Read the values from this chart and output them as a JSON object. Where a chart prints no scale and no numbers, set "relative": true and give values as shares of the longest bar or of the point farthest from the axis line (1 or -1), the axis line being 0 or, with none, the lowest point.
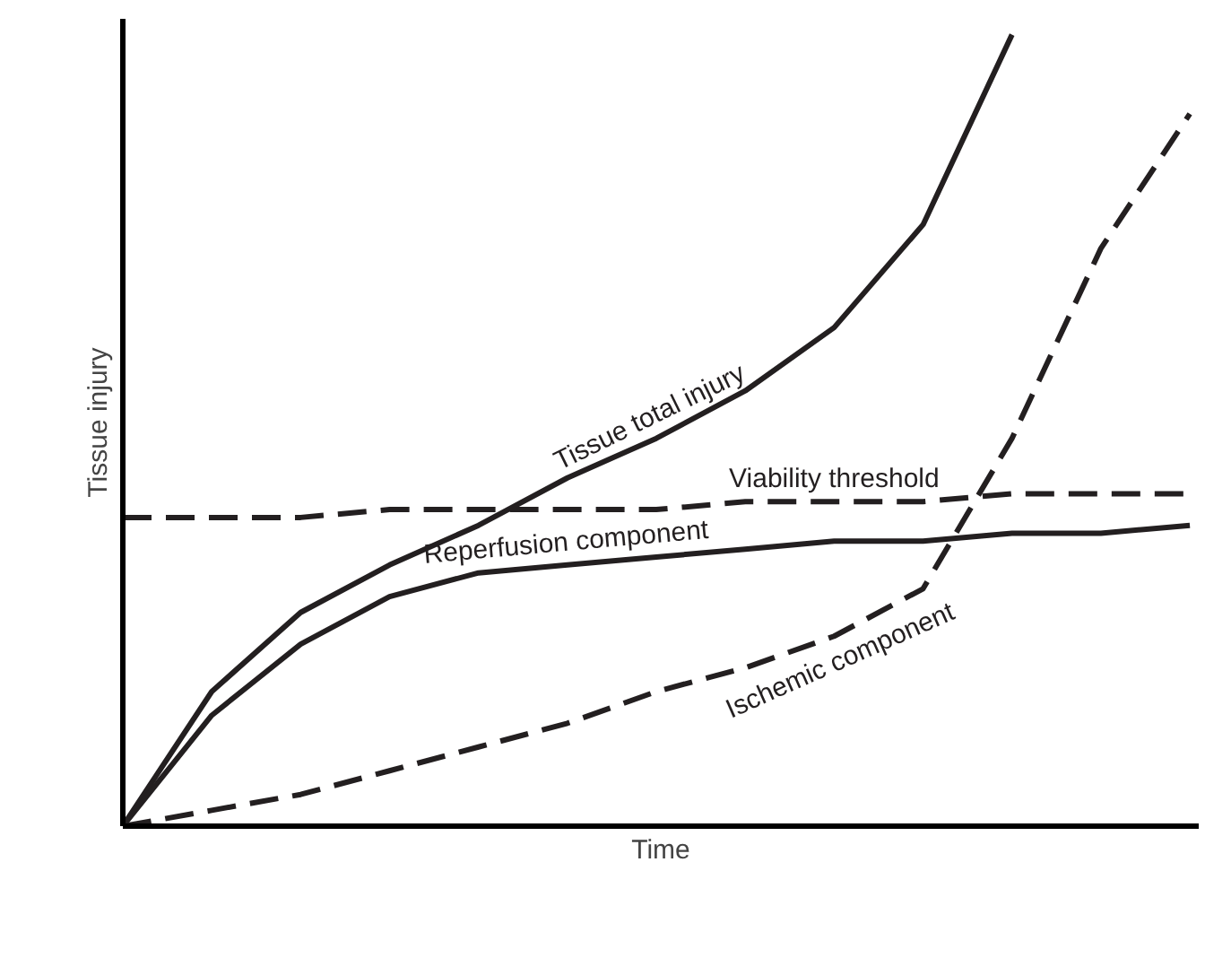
{
  "chart_data": {
    "type": "line",
    "relative": true,
    "xlabel": "Time",
    "ylabel": "Tissue injury",
    "categories": [
      null,
      null,
      null,
      null,
      null,
      null,
      null,
      null,
      null,
      null,
      null,
      null,
      null
    ],
    "series": [
      {
        "name": "Tissue total injury",
        "color": "#231f20",
        "line_style": "solid",
        "values": [
          0,
          0.17,
          0.27,
          0.33,
          0.38,
          0.44,
          0.49,
          0.55,
          0.63,
          0.76,
          1.0,
          null,
          null
        ]
      },
      {
        "name": "Viability threshold",
        "color": "#231f20",
        "line_style": "dashed",
        "values": [
          0.39,
          0.39,
          0.39,
          0.4,
          0.4,
          0.4,
          0.4,
          0.41,
          0.41,
          0.41,
          0.42,
          0.42,
          0.42
        ]
      },
      {
        "name": "Reperfusion component",
        "color": "#231f20",
        "line_style": "solid",
        "values": [
          0,
          0.14,
          0.23,
          0.29,
          0.32,
          0.33,
          0.34,
          0.35,
          0.36,
          0.36,
          0.37,
          0.37,
          0.38
        ]
      },
      {
        "name": "Ischemic component",
        "color": "#231f20",
        "line_style": "dashed",
        "values": [
          0,
          0.02,
          0.04,
          0.07,
          0.1,
          0.13,
          0.17,
          0.2,
          0.24,
          0.3,
          0.49,
          0.73,
          0.9
        ]
      }
    ]
  }
}
